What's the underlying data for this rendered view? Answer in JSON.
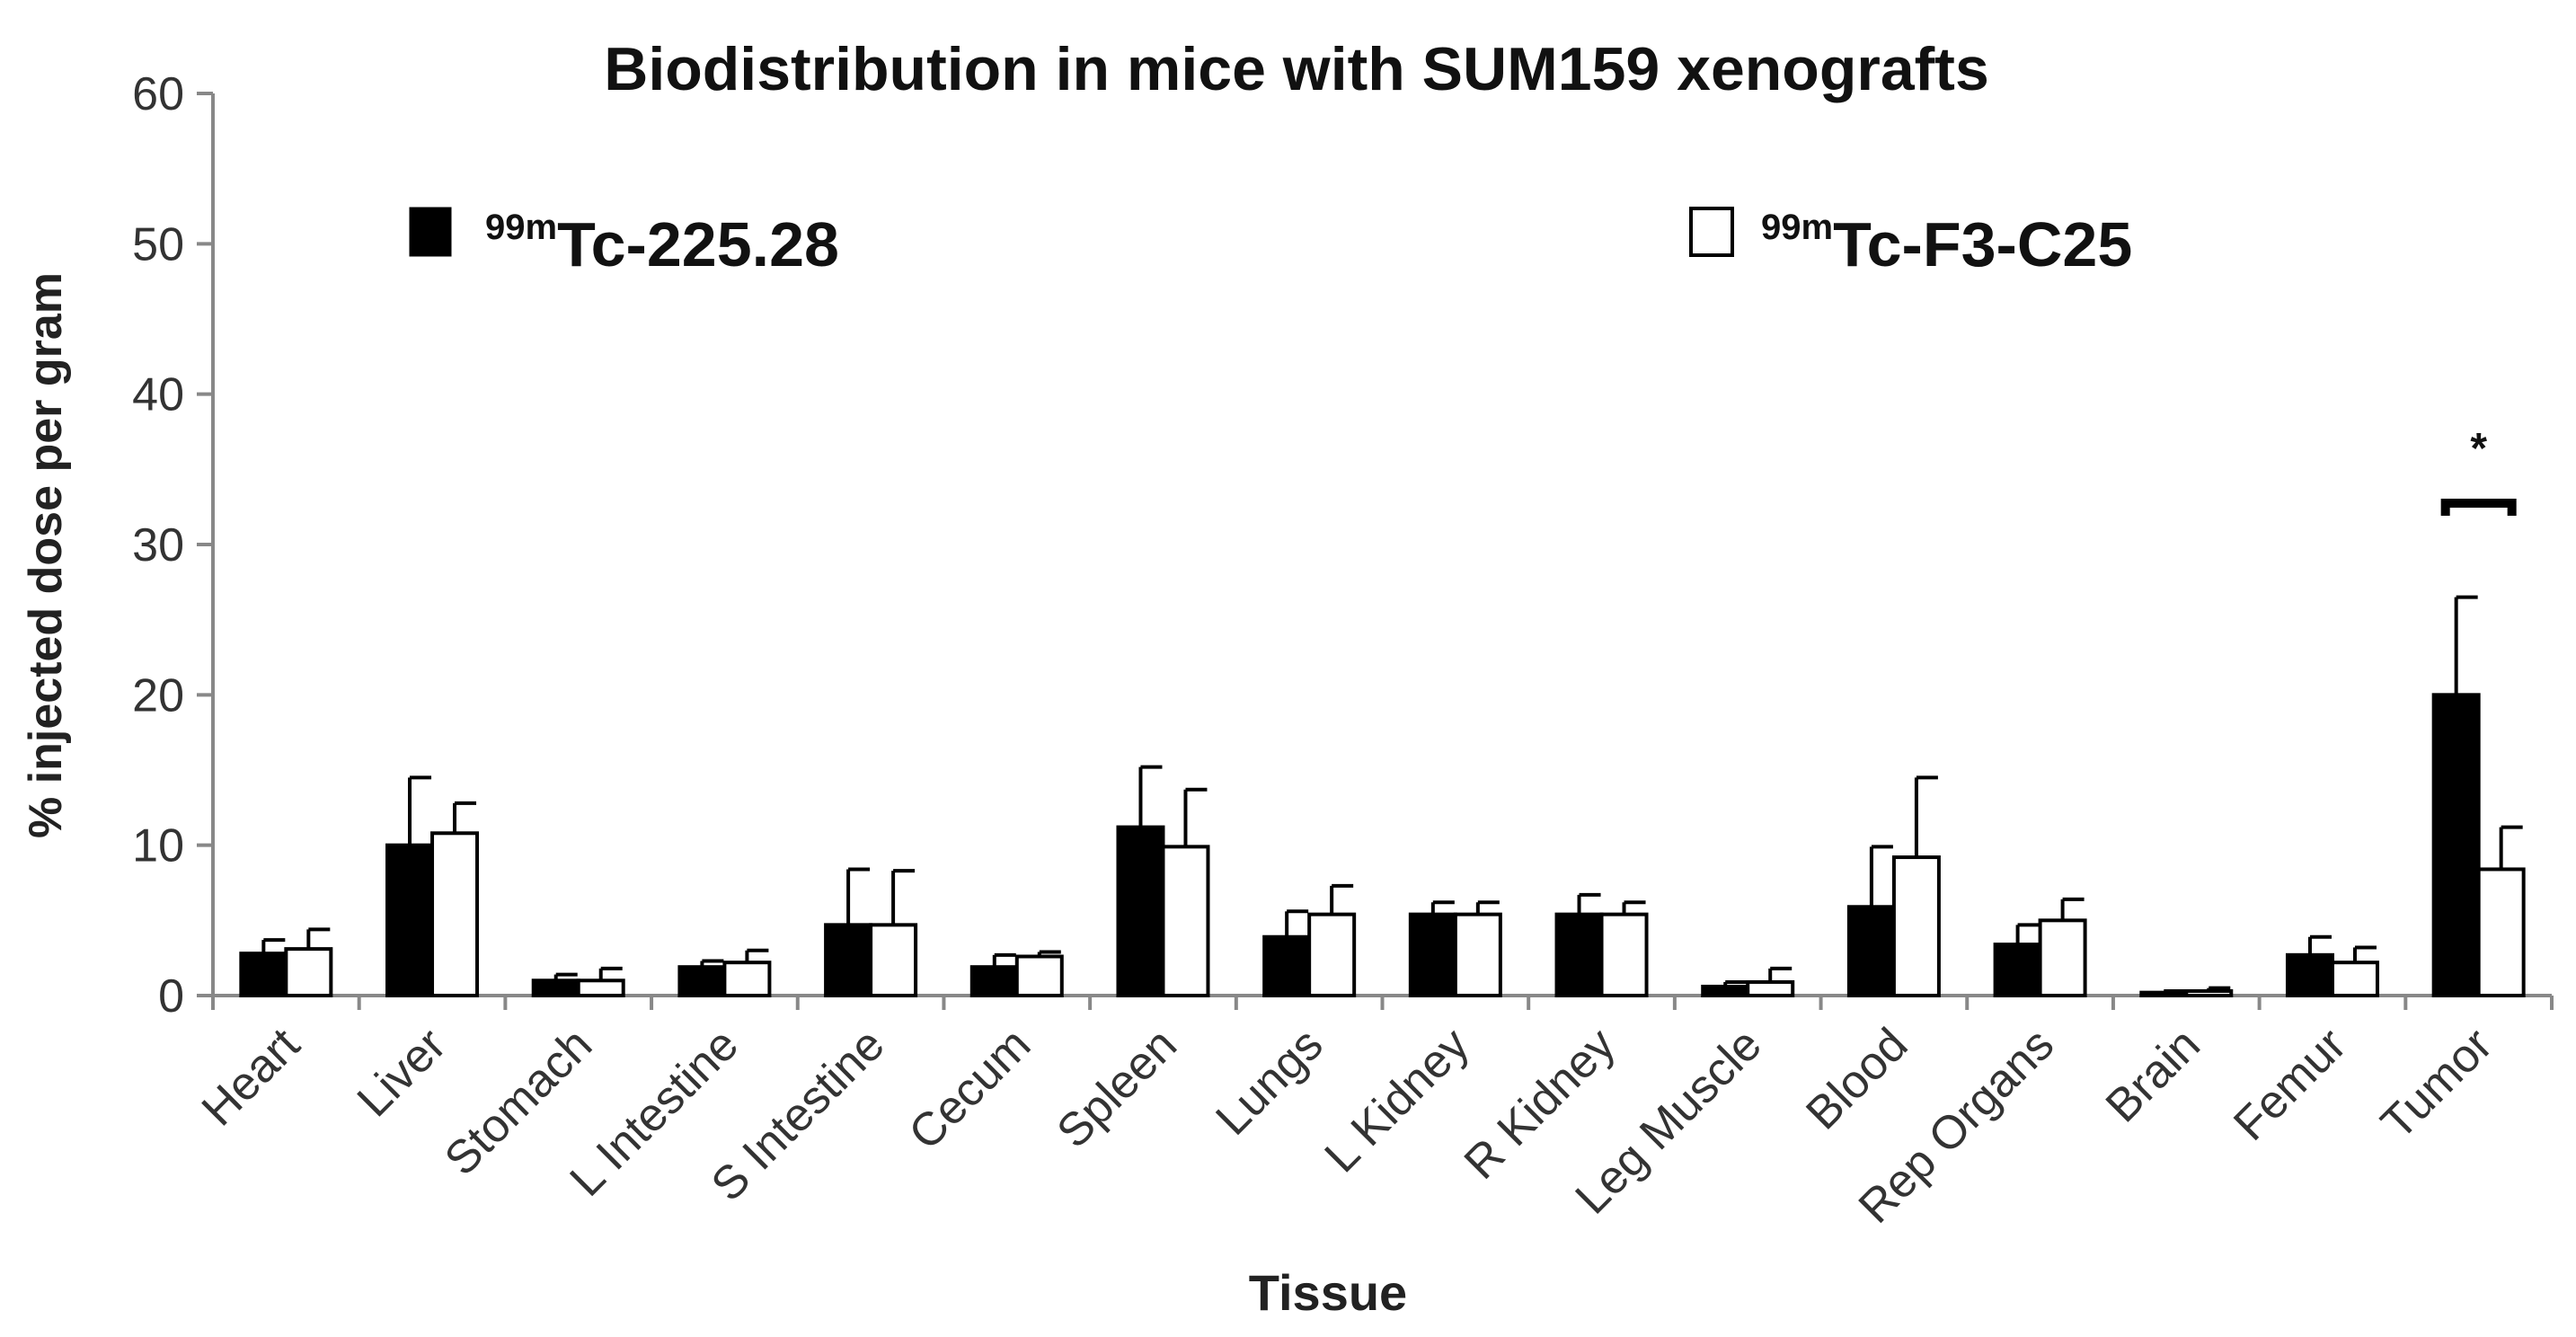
{
  "chart_data": {
    "type": "bar",
    "title": "Biodistribution in mice with SUM159 xenografts",
    "xlabel": "Tissue",
    "ylabel": "% injected dose per gram",
    "ylim": [
      0,
      60
    ],
    "yticks": [
      "0",
      "10",
      "20",
      "30",
      "40",
      "50",
      "60"
    ],
    "categories": [
      "Heart",
      "Liver",
      "Stomach",
      "L Intestine",
      "S Intestine",
      "Cecum",
      "Spleen",
      "Lungs",
      "L Kidney",
      "R Kidney",
      "Leg Muscle",
      "Blood",
      "Rep Organs",
      "Brain",
      "Femur",
      "Tumor"
    ],
    "series": [
      {
        "name_sup": "99m",
        "name_main": "Tc-225.28",
        "color": "#000000",
        "values": [
          2.8,
          10.0,
          1.0,
          1.9,
          4.7,
          1.9,
          11.2,
          3.9,
          5.4,
          5.4,
          0.6,
          5.9,
          3.4,
          0.2,
          2.7,
          20.0
        ],
        "errors": [
          0.9,
          4.5,
          0.4,
          0.4,
          3.7,
          0.8,
          4.0,
          1.7,
          0.8,
          1.3,
          0.3,
          4.0,
          1.3,
          0.1,
          1.2,
          6.5
        ]
      },
      {
        "name_sup": "99m",
        "name_main": "Tc-F3-C25",
        "color": "#ffffff",
        "values": [
          3.1,
          10.8,
          1.0,
          2.2,
          4.7,
          2.6,
          9.9,
          5.4,
          5.4,
          5.4,
          0.9,
          9.2,
          5.0,
          0.3,
          2.2,
          8.4
        ],
        "errors": [
          1.3,
          2.0,
          0.8,
          0.8,
          3.6,
          0.3,
          3.8,
          1.9,
          0.8,
          0.8,
          0.9,
          5.3,
          1.4,
          0.2,
          1.0,
          2.8
        ]
      }
    ],
    "annotations": [
      {
        "text": "*",
        "category": "Tumor"
      }
    ],
    "grid": false,
    "legend": "top"
  }
}
